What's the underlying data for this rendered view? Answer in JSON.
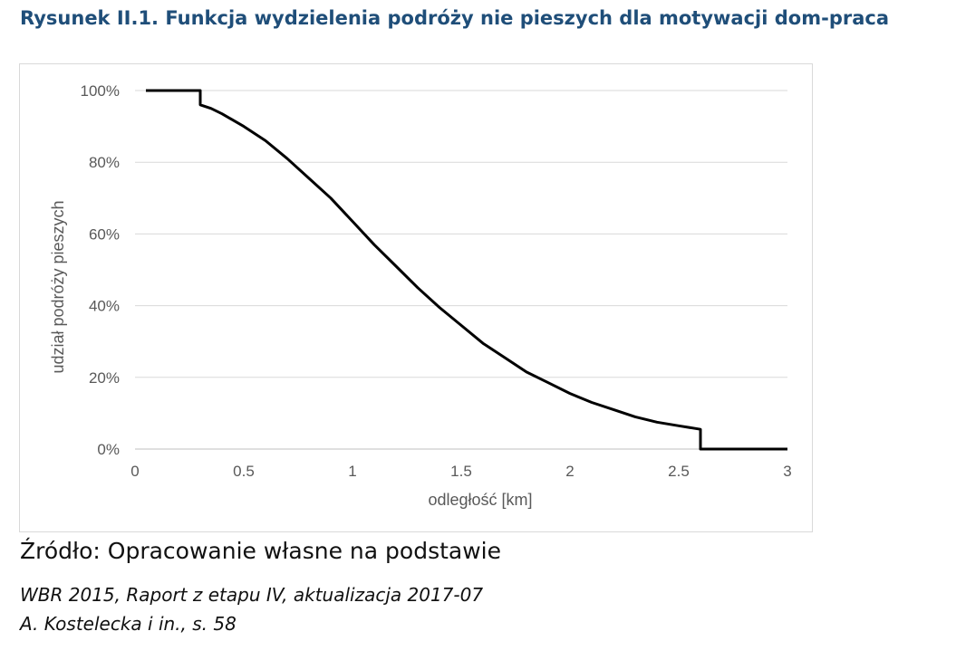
{
  "figure": {
    "title": "Rysunek II.1. Funkcja wydzielenia podróży nie pieszych dla motywacji dom-praca",
    "source": "Źródło: Opracowanie własne na podstawie",
    "reference_lines": [
      "WBR 2015, Raport z etapu IV, aktualizacja 2017-07",
      "A. Kostelecka i in., s. 58"
    ]
  },
  "chart_data": {
    "type": "line",
    "title": "",
    "xlabel": "odległość [km]",
    "ylabel": "udział podróży pieszych",
    "xlim": [
      0,
      3
    ],
    "ylim": [
      0,
      100
    ],
    "x_ticks": [
      0,
      0.5,
      1,
      1.5,
      2,
      2.5,
      3
    ],
    "x_tick_labels": [
      "0",
      "0.5",
      "1",
      "1.5",
      "2",
      "2.5",
      "3"
    ],
    "y_ticks": [
      0,
      20,
      40,
      60,
      80,
      100
    ],
    "y_tick_labels": [
      "0%",
      "20%",
      "40%",
      "60%",
      "80%",
      "100%"
    ],
    "grid": {
      "horizontal": true,
      "vertical": false
    },
    "legend": "none",
    "series": [
      {
        "color": "#000000",
        "x": [
          0.05,
          0.3,
          0.3,
          0.35,
          0.4,
          0.5,
          0.6,
          0.7,
          0.8,
          0.9,
          1.0,
          1.1,
          1.2,
          1.3,
          1.4,
          1.5,
          1.6,
          1.7,
          1.8,
          1.9,
          2.0,
          2.1,
          2.2,
          2.3,
          2.4,
          2.5,
          2.6,
          2.6,
          3.0
        ],
        "y": [
          100,
          100,
          96,
          95,
          93.5,
          90,
          86,
          81,
          75.5,
          70,
          63.5,
          57,
          51,
          45,
          39.5,
          34.5,
          29.5,
          25.5,
          21.5,
          18.5,
          15.5,
          13,
          11,
          9,
          7.5,
          6.5,
          5.5,
          0,
          0
        ]
      }
    ]
  }
}
